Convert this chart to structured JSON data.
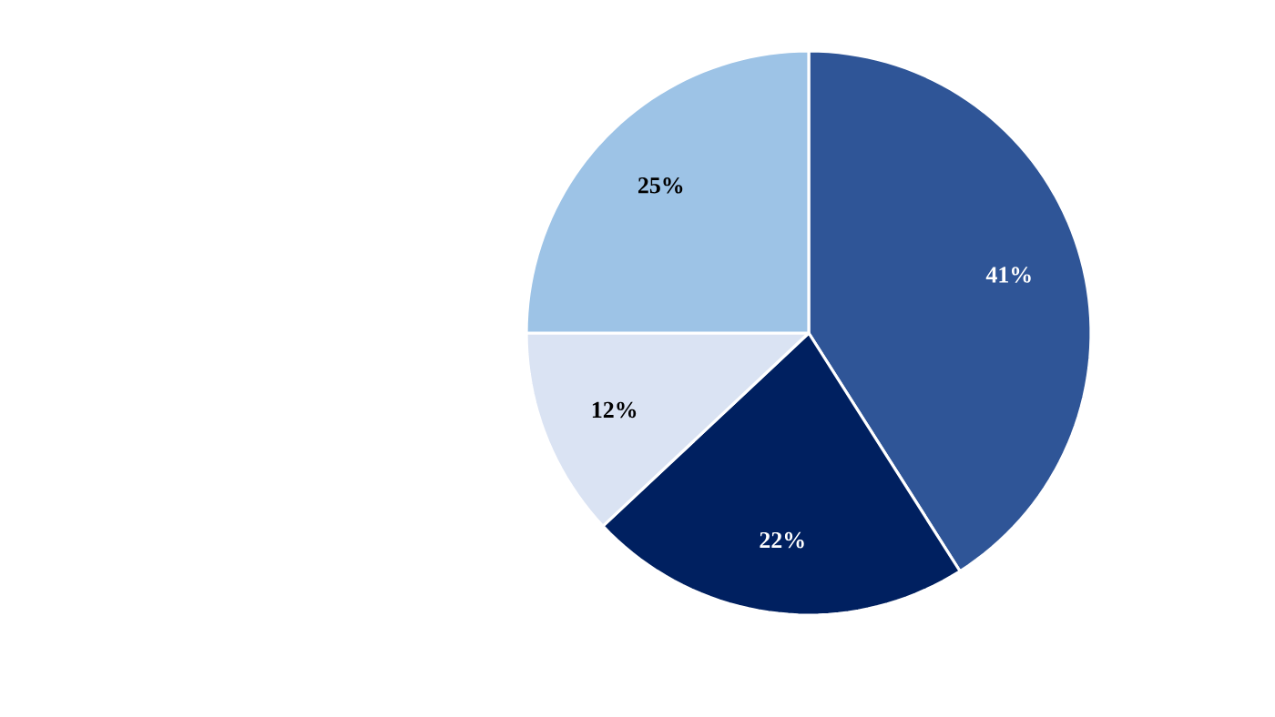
{
  "chart_data": {
    "type": "pie",
    "categories": [
      null,
      null,
      null,
      null
    ],
    "values": [
      41,
      22,
      12,
      25
    ],
    "colors": [
      "#2f5597",
      "#002060",
      "#dae3f3",
      "#9dc3e6"
    ],
    "value_labels": [
      "41%",
      "22%",
      "12%",
      "25%"
    ]
  }
}
